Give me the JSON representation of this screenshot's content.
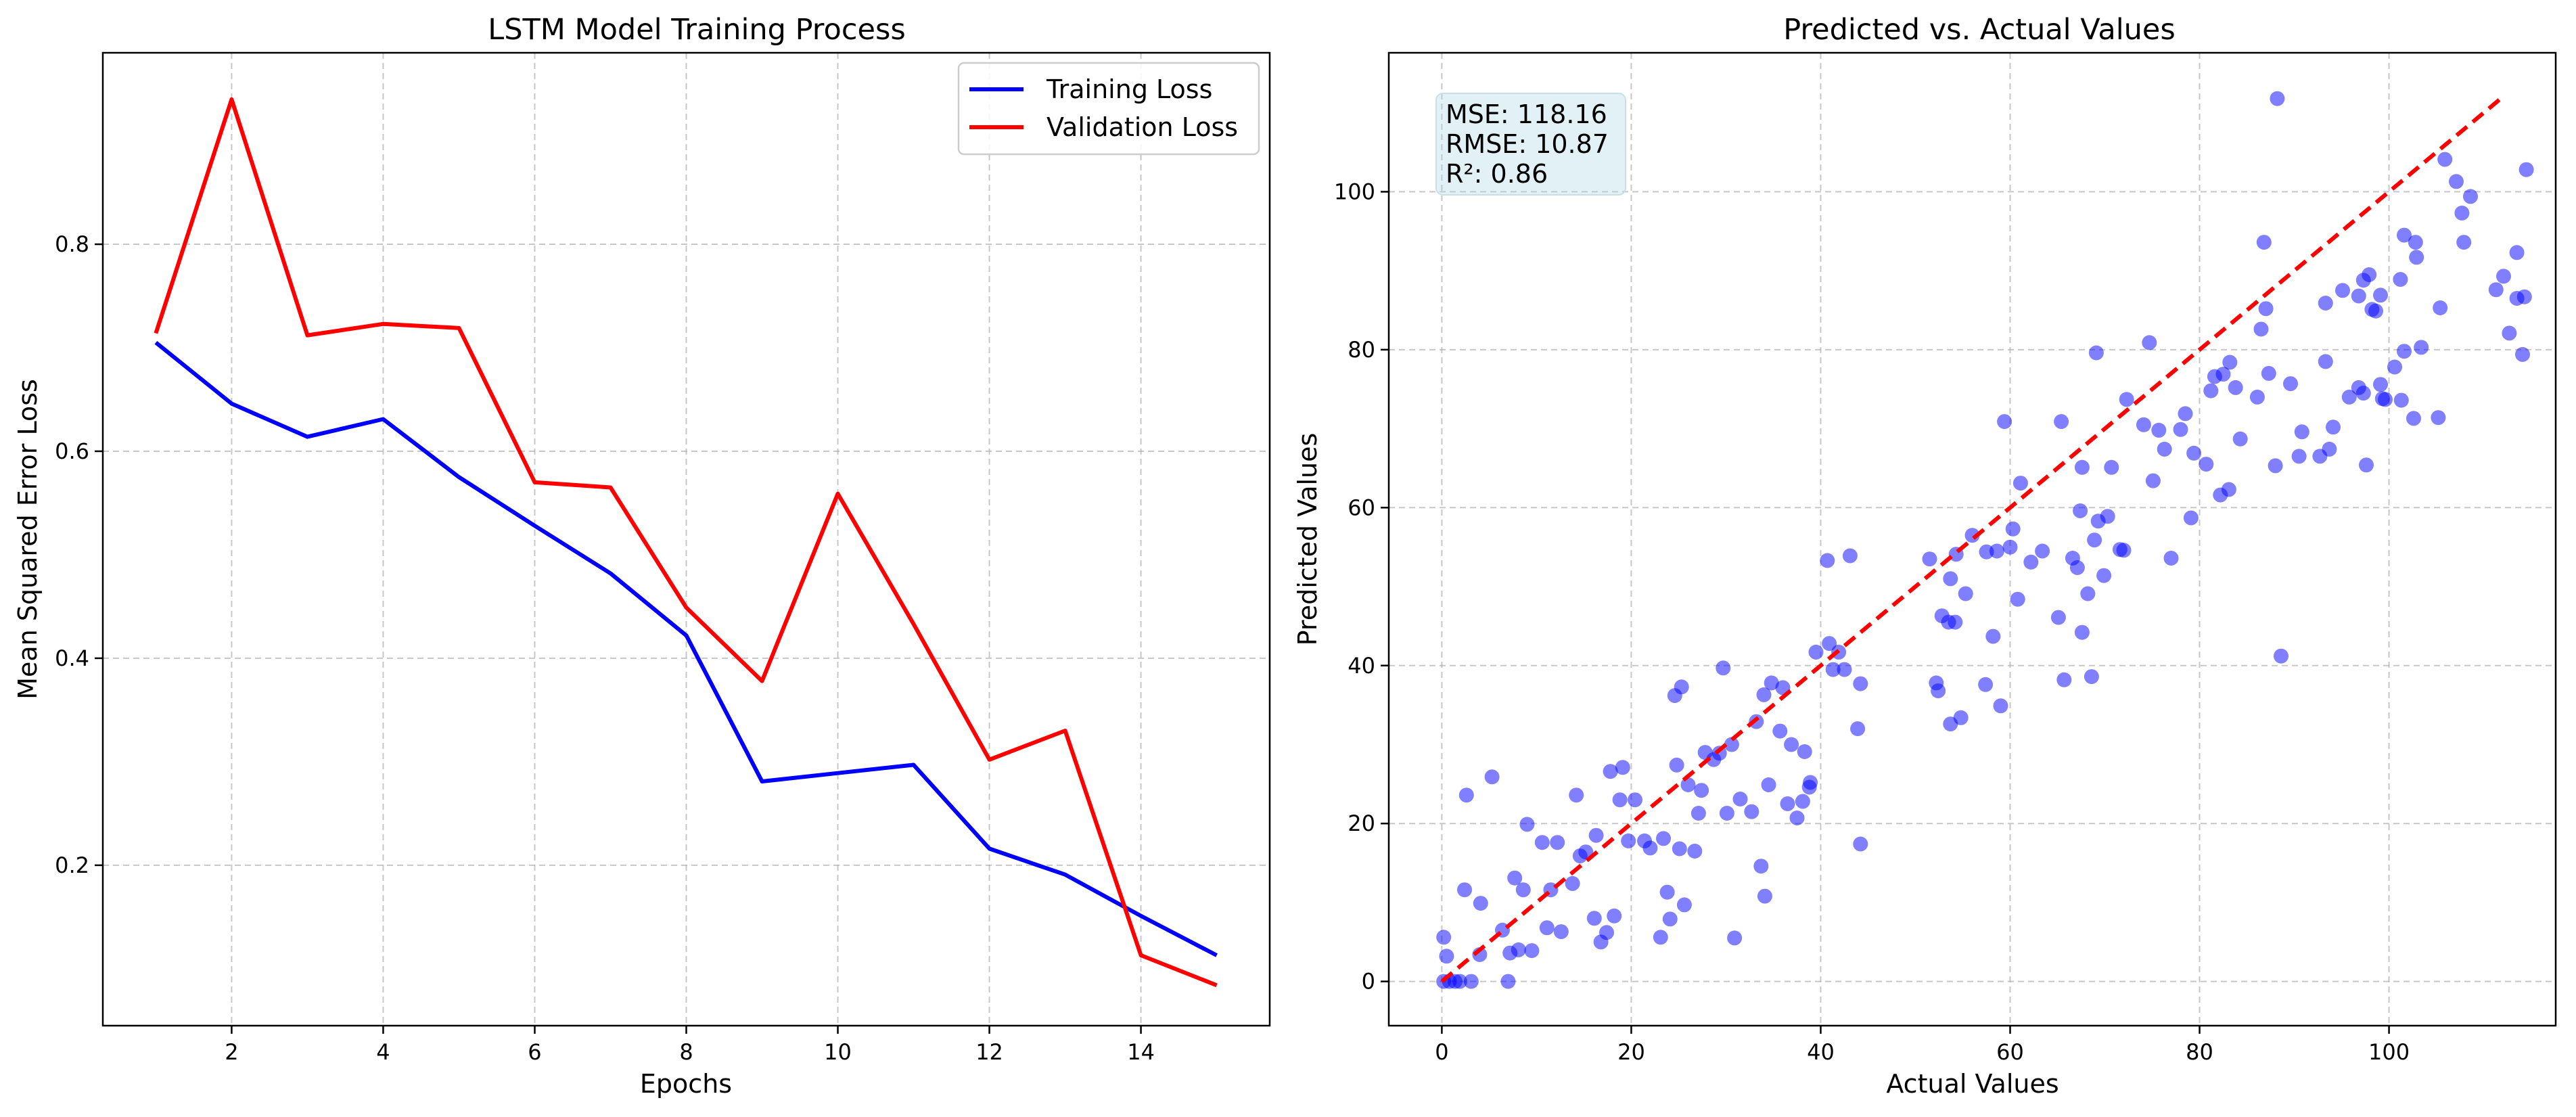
{
  "chart_data": [
    {
      "type": "line",
      "title": "LSTM Model Training Process",
      "xlabel": "Epochs",
      "ylabel": "Mean Squared Error Loss",
      "xlim": [
        0.3,
        15.7
      ],
      "ylim": [
        0.045,
        0.985
      ],
      "xticks": [
        2,
        4,
        6,
        8,
        10,
        12,
        14
      ],
      "yticks": [
        0.2,
        0.4,
        0.6,
        0.8
      ],
      "grid": true,
      "legend_position": "top-right",
      "x": [
        1,
        2,
        3,
        4,
        5,
        6,
        7,
        8,
        9,
        10,
        11,
        12,
        13,
        14,
        15
      ],
      "series": [
        {
          "name": "Training Loss",
          "color": "#0000ff",
          "values": [
            0.705,
            0.646,
            0.614,
            0.631,
            0.575,
            0.528,
            0.482,
            0.422,
            0.281,
            0.289,
            0.297,
            0.216,
            0.191,
            0.151,
            0.113
          ]
        },
        {
          "name": "Validation Loss",
          "color": "#ff0000",
          "values": [
            0.714,
            0.94,
            0.712,
            0.723,
            0.719,
            0.57,
            0.565,
            0.449,
            0.378,
            0.559,
            0.433,
            0.302,
            0.33,
            0.113,
            0.084
          ]
        }
      ]
    },
    {
      "type": "scatter",
      "title": "Predicted vs. Actual Values",
      "xlabel": "Actual Values",
      "ylabel": "Predicted Values",
      "xlim": [
        -5.6,
        117.6
      ],
      "ylim": [
        -5.6,
        117.6
      ],
      "xticks": [
        0,
        20,
        40,
        60,
        80,
        100
      ],
      "yticks": [
        0,
        20,
        40,
        60,
        80,
        100
      ],
      "grid": true,
      "point_color": "#0000ff",
      "reference_line": {
        "from": [
          0,
          0
        ],
        "to": [
          112,
          112
        ],
        "color": "#ff0000",
        "style": "dashed"
      },
      "stats": [
        "MSE: 118.16",
        "RMSE: 10.87",
        "R²: 0.86"
      ],
      "points": [
        [
          0.2,
          5.6
        ],
        [
          0.5,
          3.2
        ],
        [
          0.2,
          0
        ],
        [
          0.8,
          0
        ],
        [
          1.4,
          0
        ],
        [
          1.9,
          0
        ],
        [
          2.4,
          11.6
        ],
        [
          2.6,
          23.6
        ],
        [
          3.1,
          0
        ],
        [
          4.1,
          9.9
        ],
        [
          4,
          3.4
        ],
        [
          5.3,
          25.9
        ],
        [
          6.4,
          6.5
        ],
        [
          7,
          0
        ],
        [
          7.2,
          3.6
        ],
        [
          7.7,
          13.1
        ],
        [
          8.1,
          4
        ],
        [
          8.6,
          11.6
        ],
        [
          9,
          19.9
        ],
        [
          9.5,
          3.9
        ],
        [
          10.6,
          17.6
        ],
        [
          11.1,
          6.8
        ],
        [
          11.5,
          11.6
        ],
        [
          12.2,
          17.6
        ],
        [
          12.6,
          6.3
        ],
        [
          13.8,
          12.4
        ],
        [
          14.2,
          23.6
        ],
        [
          14.6,
          15.9
        ],
        [
          15.2,
          16.4
        ],
        [
          16.1,
          8
        ],
        [
          16.3,
          18.5
        ],
        [
          16.8,
          5
        ],
        [
          17.4,
          6.2
        ],
        [
          17.8,
          26.6
        ],
        [
          18.2,
          8.3
        ],
        [
          18.8,
          23
        ],
        [
          19.1,
          27.1
        ],
        [
          19.7,
          17.8
        ],
        [
          20.4,
          23
        ],
        [
          21.4,
          17.8
        ],
        [
          22,
          16.9
        ],
        [
          23.1,
          5.6
        ],
        [
          23.4,
          18.1
        ],
        [
          23.8,
          11.3
        ],
        [
          24.1,
          7.9
        ],
        [
          24.6,
          36.2
        ],
        [
          24.8,
          27.4
        ],
        [
          25.1,
          16.8
        ],
        [
          25.3,
          37.3
        ],
        [
          25.6,
          9.7
        ],
        [
          26,
          24.9
        ],
        [
          26.7,
          16.5
        ],
        [
          27.1,
          21.3
        ],
        [
          27.4,
          24.2
        ],
        [
          27.8,
          29
        ],
        [
          28.7,
          28.1
        ],
        [
          29.3,
          28.9
        ],
        [
          29.7,
          39.7
        ],
        [
          30.1,
          21.3
        ],
        [
          30.6,
          30
        ],
        [
          30.9,
          5.5
        ],
        [
          31.5,
          23.1
        ],
        [
          32.7,
          21.5
        ],
        [
          33.2,
          32.9
        ],
        [
          33.7,
          14.6
        ],
        [
          34,
          36.3
        ],
        [
          34.1,
          10.8
        ],
        [
          34.5,
          24.9
        ],
        [
          34.8,
          37.8
        ],
        [
          35.7,
          31.7
        ],
        [
          36,
          37.2
        ],
        [
          36.5,
          22.5
        ],
        [
          36.9,
          30
        ],
        [
          37.5,
          20.7
        ],
        [
          38.1,
          22.8
        ],
        [
          38.3,
          29.1
        ],
        [
          38.8,
          24.6
        ],
        [
          38.9,
          25.2
        ],
        [
          39.5,
          41.7
        ],
        [
          40.7,
          53.3
        ],
        [
          40.9,
          42.8
        ],
        [
          41.3,
          39.5
        ],
        [
          41.9,
          41.7
        ],
        [
          42.5,
          39.5
        ],
        [
          43.1,
          53.9
        ],
        [
          43.9,
          32
        ],
        [
          44.2,
          37.7
        ],
        [
          44.2,
          17.4
        ],
        [
          51.5,
          53.5
        ],
        [
          52.2,
          37.8
        ],
        [
          52.4,
          36.8
        ],
        [
          52.8,
          46.3
        ],
        [
          53.5,
          45.5
        ],
        [
          53.7,
          51
        ],
        [
          53.7,
          32.6
        ],
        [
          54.2,
          45.5
        ],
        [
          54.3,
          54.1
        ],
        [
          54.8,
          33.4
        ],
        [
          55.3,
          49.1
        ],
        [
          56,
          56.5
        ],
        [
          57.4,
          37.6
        ],
        [
          57.5,
          54.4
        ],
        [
          58.2,
          43.7
        ],
        [
          58.6,
          54.5
        ],
        [
          59,
          34.9
        ],
        [
          59.4,
          70.9
        ],
        [
          60,
          55
        ],
        [
          60.3,
          57.3
        ],
        [
          60.8,
          48.4
        ],
        [
          61.1,
          63.1
        ],
        [
          62.2,
          53.1
        ],
        [
          63.4,
          54.5
        ],
        [
          65.1,
          46.1
        ],
        [
          65.4,
          70.9
        ],
        [
          65.7,
          38.2
        ],
        [
          66.6,
          53.6
        ],
        [
          67.1,
          52.4
        ],
        [
          67.4,
          59.6
        ],
        [
          67.6,
          44.2
        ],
        [
          67.6,
          65.1
        ],
        [
          68.2,
          49.1
        ],
        [
          68.6,
          38.6
        ],
        [
          68.9,
          55.9
        ],
        [
          69.1,
          79.6
        ],
        [
          69.3,
          58.3
        ],
        [
          69.9,
          51.4
        ],
        [
          70.3,
          58.9
        ],
        [
          70.7,
          65.1
        ],
        [
          71.6,
          54.7
        ],
        [
          72,
          54.6
        ],
        [
          72.3,
          73.7
        ],
        [
          74.1,
          70.5
        ],
        [
          74.7,
          80.9
        ],
        [
          75.1,
          63.4
        ],
        [
          75.7,
          69.8
        ],
        [
          76.3,
          67.4
        ],
        [
          77,
          53.6
        ],
        [
          78,
          69.9
        ],
        [
          78.5,
          71.9
        ],
        [
          79.1,
          58.7
        ],
        [
          79.4,
          66.9
        ],
        [
          80.7,
          65.5
        ],
        [
          81.2,
          74.8
        ],
        [
          81.6,
          76.6
        ],
        [
          82.2,
          61.6
        ],
        [
          82.5,
          76.9
        ],
        [
          83.1,
          62.3
        ],
        [
          83.2,
          78.4
        ],
        [
          83.8,
          75.2
        ],
        [
          84.3,
          68.7
        ],
        [
          86.1,
          74
        ],
        [
          86.5,
          82.6
        ],
        [
          86.8,
          93.6
        ],
        [
          87,
          85.2
        ],
        [
          87.3,
          77
        ],
        [
          88,
          65.3
        ],
        [
          88.2,
          111.8
        ],
        [
          88.6,
          41.2
        ],
        [
          89.6,
          75.7
        ],
        [
          90.5,
          66.5
        ],
        [
          90.8,
          69.6
        ],
        [
          92.7,
          66.5
        ],
        [
          93.3,
          85.9
        ],
        [
          93.3,
          78.5
        ],
        [
          93.7,
          67.4
        ],
        [
          94.1,
          70.2
        ],
        [
          95.1,
          87.5
        ],
        [
          95.8,
          74
        ],
        [
          96.8,
          75.2
        ],
        [
          96.8,
          86.8
        ],
        [
          97.3,
          88.8
        ],
        [
          97.3,
          74.5
        ],
        [
          97.6,
          65.4
        ],
        [
          97.9,
          89.5
        ],
        [
          98.2,
          85.1
        ],
        [
          98.6,
          84.9
        ],
        [
          99.1,
          86.9
        ],
        [
          99.1,
          75.6
        ],
        [
          99.3,
          73.8
        ],
        [
          99.6,
          73.7
        ],
        [
          100.6,
          77.8
        ],
        [
          101.2,
          88.9
        ],
        [
          101.3,
          73.6
        ],
        [
          101.6,
          79.8
        ],
        [
          101.6,
          94.5
        ],
        [
          102.6,
          71.3
        ],
        [
          102.8,
          93.6
        ],
        [
          102.9,
          91.7
        ],
        [
          103.4,
          80.3
        ],
        [
          105.2,
          71.4
        ],
        [
          105.4,
          85.3
        ],
        [
          105.9,
          104.1
        ],
        [
          107.1,
          101.3
        ],
        [
          107.7,
          97.3
        ],
        [
          107.9,
          93.6
        ],
        [
          108.6,
          99.4
        ],
        [
          111.3,
          87.6
        ],
        [
          112.1,
          89.3
        ],
        [
          112.7,
          82.1
        ],
        [
          113.5,
          92.3
        ],
        [
          113.5,
          86.5
        ],
        [
          114.1,
          79.4
        ],
        [
          114.3,
          86.7
        ],
        [
          114.5,
          102.8
        ]
      ]
    }
  ]
}
